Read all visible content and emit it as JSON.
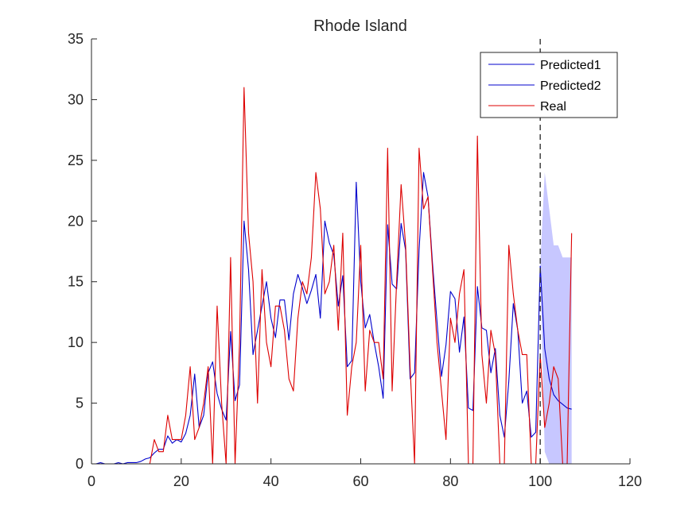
{
  "chart_data": {
    "type": "line",
    "title": "Rhode Island",
    "xlabel": "",
    "ylabel": "",
    "xlim": [
      0,
      120
    ],
    "ylim": [
      0,
      35
    ],
    "xticks": [
      0,
      20,
      40,
      60,
      80,
      100,
      120
    ],
    "yticks": [
      0,
      5,
      10,
      15,
      20,
      25,
      30,
      35
    ],
    "legend_position": "top-right",
    "grid": false,
    "vline_x": 100,
    "series": [
      {
        "name": "Predicted1",
        "color": "#0000cc",
        "x": [
          1,
          2,
          3,
          4,
          5,
          6,
          7,
          8,
          9,
          10,
          11,
          12,
          13,
          14,
          15,
          16,
          17,
          18,
          19,
          20,
          21,
          22,
          23,
          24,
          25,
          26,
          27,
          28,
          29,
          30,
          31,
          32,
          33,
          34,
          35,
          36,
          37,
          38,
          39,
          40,
          41,
          42,
          43,
          44,
          45,
          46,
          47,
          48,
          49,
          50,
          51,
          52,
          53,
          54,
          55,
          56,
          57,
          58,
          59,
          60,
          61,
          62,
          63,
          64,
          65,
          66,
          67,
          68,
          69,
          70,
          71,
          72,
          73,
          74,
          75,
          76,
          77,
          78,
          79,
          80,
          81,
          82,
          83,
          84,
          85,
          86,
          87,
          88,
          89,
          90,
          91,
          92,
          93,
          94,
          95,
          96,
          97,
          98,
          99,
          100
        ],
        "values": [
          0,
          0.1,
          0,
          0,
          0,
          0.1,
          0,
          0.1,
          0.1,
          0.1,
          0.2,
          0.4,
          0.5,
          0.9,
          1.2,
          1.2,
          2.3,
          1.7,
          2,
          1.8,
          2.5,
          4,
          7.4,
          3,
          4,
          7.5,
          8.4,
          5.8,
          4.5,
          3.6,
          10.9,
          5.2,
          6.5,
          20,
          16,
          9,
          11,
          13,
          15,
          12,
          10.4,
          13.5,
          13.5,
          10.2,
          14,
          15.6,
          14.5,
          13.2,
          14.3,
          15.6,
          12,
          20,
          18.2,
          17.2,
          13,
          15.5,
          8,
          8.5,
          23.2,
          15,
          11.2,
          12.3,
          10,
          8,
          5.4,
          19.7,
          14.8,
          14.4,
          19.8,
          17.6,
          7,
          7.5,
          17.6,
          24,
          22,
          16.5,
          11.7,
          7.2,
          9.8,
          14.2,
          13.6,
          9.2,
          12.1,
          4.6,
          4.4,
          14.6,
          11.2,
          11,
          7.5,
          9.5,
          4,
          2.2,
          6.8,
          13.2,
          11,
          5,
          6,
          2.2,
          2.6,
          16.3
        ]
      },
      {
        "name": "Predicted2",
        "color": "#0000cc",
        "x": [
          100,
          101,
          102,
          103,
          104,
          105,
          106,
          107
        ],
        "values": [
          16.3,
          9.5,
          7,
          5.7,
          5.2,
          4.9,
          4.6,
          4.5
        ],
        "band_lower": [
          16.3,
          1,
          0,
          0,
          0,
          0,
          0,
          0
        ],
        "band_upper": [
          16.3,
          24,
          21,
          18,
          18,
          17,
          17,
          17
        ],
        "band_color": "#9999ff"
      },
      {
        "name": "Real",
        "color": "#dd0000",
        "x": [
          1,
          2,
          3,
          4,
          5,
          6,
          7,
          8,
          9,
          10,
          11,
          12,
          13,
          14,
          15,
          16,
          17,
          18,
          19,
          20,
          21,
          22,
          23,
          24,
          25,
          26,
          27,
          28,
          29,
          30,
          31,
          32,
          33,
          34,
          35,
          36,
          37,
          38,
          39,
          40,
          41,
          42,
          43,
          44,
          45,
          46,
          47,
          48,
          49,
          50,
          51,
          52,
          53,
          54,
          55,
          56,
          57,
          58,
          59,
          60,
          61,
          62,
          63,
          64,
          65,
          66,
          67,
          68,
          69,
          70,
          71,
          72,
          73,
          74,
          75,
          76,
          77,
          78,
          79,
          80,
          81,
          82,
          83,
          84,
          85,
          86,
          87,
          88,
          89,
          90,
          91,
          92,
          93,
          94,
          95,
          96,
          97,
          98,
          99,
          100,
          101,
          102,
          103,
          104,
          105,
          106,
          107
        ],
        "values": [
          0,
          0,
          0,
          0,
          0,
          0,
          0,
          0,
          0,
          0,
          0,
          0,
          0,
          2,
          1,
          1,
          4,
          2,
          2,
          2,
          4,
          8,
          2,
          3,
          5,
          8,
          0,
          13,
          5,
          0,
          17,
          0,
          10,
          31,
          19,
          15,
          5,
          16,
          10,
          8,
          13,
          13,
          11,
          7,
          6,
          12,
          15,
          14,
          17,
          24,
          21,
          14,
          15,
          18,
          11,
          19,
          4,
          8,
          10,
          18,
          6,
          11,
          10,
          10,
          7,
          26,
          6,
          15,
          23,
          18,
          8,
          0,
          26,
          21,
          22,
          16,
          10,
          6,
          2,
          12,
          10,
          14,
          16,
          0,
          0,
          27,
          9,
          5,
          11,
          9,
          0,
          0,
          18,
          14,
          11,
          9,
          9,
          0,
          0,
          9,
          3,
          5,
          8,
          7,
          0,
          0,
          19
        ]
      }
    ]
  }
}
